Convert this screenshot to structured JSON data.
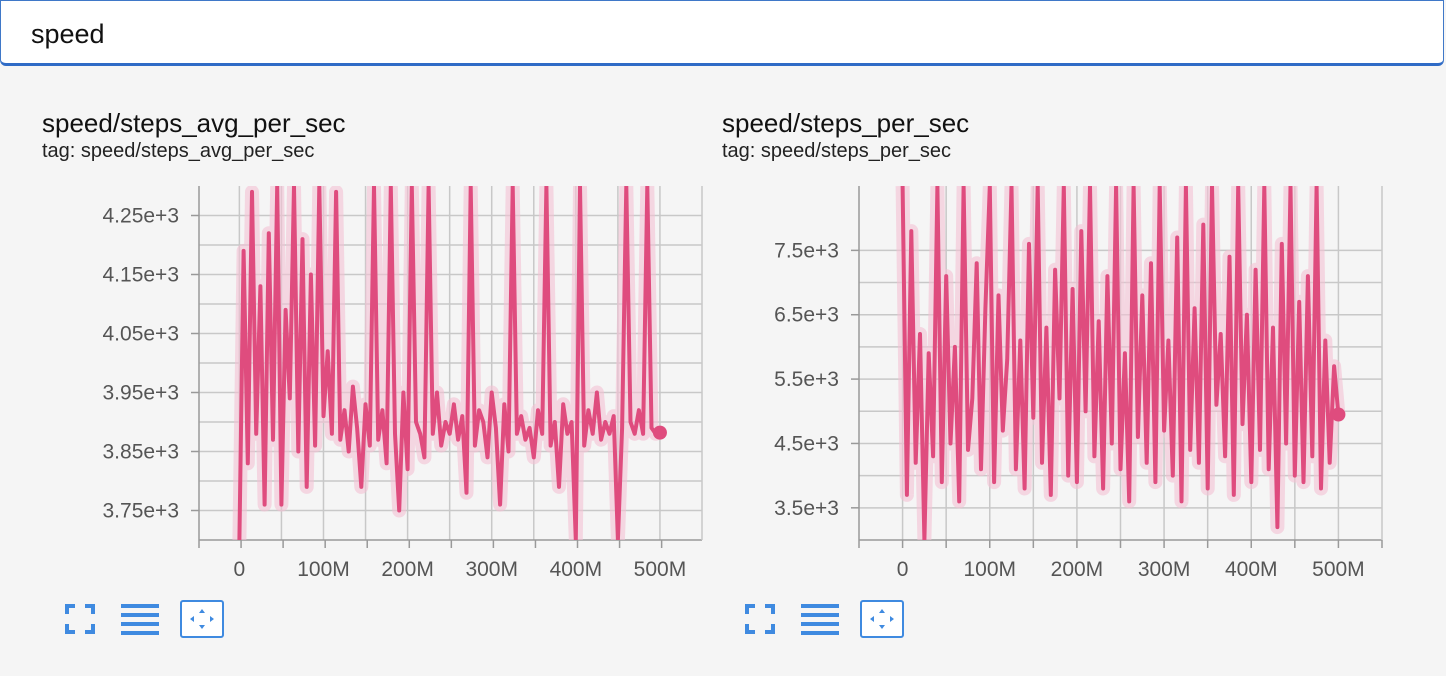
{
  "search": {
    "value": "speed",
    "placeholder": ""
  },
  "colors": {
    "line": "#df4c7e",
    "band": "#f3c2d3",
    "accent": "#3f8ae0",
    "grid": "#c8c8c8"
  },
  "cards": [
    {
      "title": "speed/steps_avg_per_sec",
      "tag": "tag: speed/steps_avg_per_sec",
      "chart_data": {
        "type": "line",
        "title": "speed/steps_avg_per_sec",
        "xlabel": "",
        "ylabel": "",
        "x_ticks": [
          "0",
          "100M",
          "200M",
          "300M",
          "400M",
          "500M"
        ],
        "x_tick_values": [
          0,
          100,
          200,
          300,
          400,
          500
        ],
        "y_ticks": [
          "4.25e+3",
          "4.15e+3",
          "4.05e+3",
          "3.95e+3",
          "3.85e+3",
          "3.75e+3"
        ],
        "y_tick_values": [
          4250,
          4150,
          4050,
          3950,
          3850,
          3750
        ],
        "xlim": [
          -48,
          550
        ],
        "ylim": [
          3700,
          4300
        ],
        "x_unit": "M steps",
        "series": [
          {
            "name": "speed/steps_avg_per_sec (smoothed)",
            "x": [
              0,
              5,
              10,
              15,
              20,
              25,
              30,
              35,
              40,
              45,
              50,
              55,
              60,
              65,
              70,
              75,
              80,
              85,
              90,
              95,
              100,
              105,
              110,
              115,
              120,
              125,
              130,
              135,
              140,
              145,
              150,
              155,
              160,
              165,
              170,
              175,
              180,
              185,
              190,
              195,
              200,
              205,
              210,
              215,
              220,
              225,
              230,
              235,
              240,
              245,
              250,
              255,
              260,
              265,
              270,
              275,
              280,
              285,
              290,
              295,
              300,
              305,
              310,
              315,
              320,
              325,
              330,
              335,
              340,
              345,
              350,
              355,
              360,
              365,
              370,
              375,
              380,
              385,
              390,
              395,
              400,
              405,
              410,
              415,
              420,
              425,
              430,
              435,
              440,
              445,
              450,
              455,
              460,
              465,
              470,
              475,
              480,
              485,
              490,
              495,
              500
            ],
            "values": [
              3700,
              4190,
              3830,
              4290,
              3880,
              4130,
              3760,
              4220,
              3870,
              4300,
              3760,
              4090,
              3940,
              4300,
              3850,
              4210,
              3790,
              4150,
              3860,
              4300,
              3910,
              4020,
              3880,
              4290,
              3870,
              3920,
              3850,
              3960,
              3890,
              3790,
              3930,
              3860,
              4300,
              3870,
              3920,
              3830,
              4300,
              3880,
              3750,
              3950,
              3820,
              4300,
              3900,
              3880,
              3840,
              4300,
              3880,
              3950,
              3860,
              3900,
              3880,
              3930,
              3870,
              3910,
              3780,
              4300,
              3860,
              3920,
              3900,
              3840,
              3950,
              3890,
              3760,
              3930,
              3850,
              4300,
              3880,
              3910,
              3870,
              3890,
              3840,
              3920,
              3880,
              4300,
              3860,
              3900,
              3790,
              3930,
              3880,
              3900,
              3700,
              4300,
              3860,
              3920,
              3880,
              3950,
              3870,
              3900,
              3880,
              3910,
              3700,
              3890,
              4300,
              3900,
              3880,
              3920,
              3880,
              4300,
              3890,
              3880,
              3882
            ]
          }
        ]
      }
    },
    {
      "title": "speed/steps_per_sec",
      "tag": "tag: speed/steps_per_sec",
      "chart_data": {
        "type": "line",
        "title": "speed/steps_per_sec",
        "xlabel": "",
        "ylabel": "",
        "x_ticks": [
          "0",
          "100M",
          "200M",
          "300M",
          "400M",
          "500M"
        ],
        "x_tick_values": [
          0,
          100,
          200,
          300,
          400,
          500
        ],
        "y_ticks": [
          "7.5e+3",
          "6.5e+3",
          "5.5e+3",
          "4.5e+3",
          "3.5e+3"
        ],
        "y_tick_values": [
          7500,
          6500,
          5500,
          4500,
          3500
        ],
        "xlim": [
          -50,
          550
        ],
        "ylim": [
          3000,
          8500
        ],
        "x_unit": "M steps",
        "series": [
          {
            "name": "speed/steps_per_sec (smoothed)",
            "x": [
              0,
              5,
              10,
              15,
              20,
              25,
              30,
              35,
              40,
              45,
              50,
              55,
              60,
              65,
              70,
              75,
              80,
              85,
              90,
              95,
              100,
              105,
              110,
              115,
              120,
              125,
              130,
              135,
              140,
              145,
              150,
              155,
              160,
              165,
              170,
              175,
              180,
              185,
              190,
              195,
              200,
              205,
              210,
              215,
              220,
              225,
              230,
              235,
              240,
              245,
              250,
              255,
              260,
              265,
              270,
              275,
              280,
              285,
              290,
              295,
              300,
              305,
              310,
              315,
              320,
              325,
              330,
              335,
              340,
              345,
              350,
              355,
              360,
              365,
              370,
              375,
              380,
              385,
              390,
              395,
              400,
              405,
              410,
              415,
              420,
              425,
              430,
              435,
              440,
              445,
              450,
              455,
              460,
              465,
              470,
              475,
              480,
              485,
              490,
              495,
              500
            ],
            "values": [
              8500,
              3700,
              7800,
              4200,
              6200,
              3000,
              5900,
              4300,
              8500,
              3900,
              7100,
              4500,
              6000,
              3600,
              8500,
              4400,
              5200,
              7300,
              4100,
              6600,
              8500,
              3900,
              6800,
              4700,
              5800,
              8500,
              4100,
              6100,
              3800,
              7600,
              4900,
              8500,
              4200,
              6300,
              3700,
              7200,
              5200,
              8500,
              4000,
              6900,
              3900,
              7800,
              5000,
              8500,
              4300,
              6400,
              3800,
              7100,
              4500,
              8500,
              4100,
              5900,
              3600,
              8500,
              4600,
              6800,
              4200,
              7300,
              3900,
              8500,
              4700,
              6100,
              4000,
              7700,
              3600,
              8500,
              4400,
              6600,
              4200,
              7900,
              3800,
              8500,
              5100,
              6200,
              4300,
              7400,
              3700,
              8500,
              4800,
              6500,
              3900,
              7200,
              4400,
              8500,
              4100,
              6300,
              3200,
              7600,
              4500,
              8500,
              4000,
              6700,
              3900,
              7100,
              4300,
              8500,
              3800,
              6100,
              4200,
              5700,
              4950
            ]
          }
        ]
      }
    }
  ]
}
